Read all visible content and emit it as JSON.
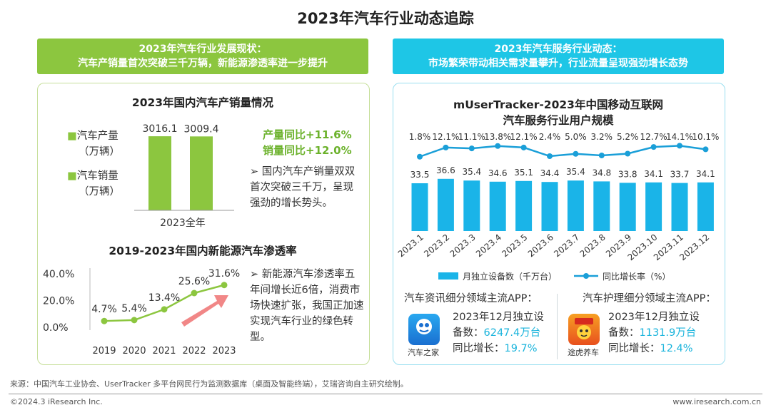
{
  "page_title": "2023年汽车行业动态追踪",
  "left_header": {
    "line1": "2023年汽车行业发展现状：",
    "line2": "汽车产销量首次突破三千万辆，新能源渗透率进一步提升"
  },
  "right_header": {
    "line1": "2023年汽车服务行业动态：",
    "line2": "市场繁荣带动相关需求量攀升，行业流量呈现强劲增长态势"
  },
  "production_section": {
    "title": "2023年国内汽车产销量情况",
    "legend": [
      {
        "label": "汽车产量",
        "unit": "（万辆）"
      },
      {
        "label": "汽车销量",
        "unit": "（万辆）"
      }
    ],
    "stats": [
      "产量同比+11.6%",
      "销量同比+12.0%"
    ],
    "note": "➢ 国内汽车产销量双双首次突破三千万，呈现强劲的增长势头。"
  },
  "nev_section": {
    "title": "2019-2023年国内新能源汽车渗透率",
    "note": "➢ 新能源汽车渗透率五年间增长近6倍，消费市场快速扩张，我国正加速实现汽车行业的绿色转型。"
  },
  "muser_section": {
    "title_line1": "mUserTracker-2023年中国移动互联网",
    "title_line2": "汽车服务行业用户规模"
  },
  "apps": {
    "left_title": "汽车资讯细分领域主流APP：",
    "right_title": "汽车护理细分领域主流APP：",
    "left": {
      "name": "汽车之家",
      "line1": "2023年12月独立设",
      "line2_prefix": "备数：",
      "devices": "6247.4万台",
      "growth_prefix": "同比增长：",
      "growth": "19.7%"
    },
    "right": {
      "name": "途虎养车",
      "line1": "2023年12月独立设",
      "line2_prefix": "备数：",
      "devices": "1131.9万台",
      "growth_prefix": "同比增长：",
      "growth": "12.4%"
    }
  },
  "footer": {
    "source": "来源：中国汽车工业协会、UserTracker 多平台网民行为监测数据库（桌面及智能终端），艾瑞咨询自主研究绘制。",
    "copyright": "©2024.3 iResearch Inc.",
    "website": "www.iresearch.com.cn"
  },
  "colors": {
    "green": "#8cc63f",
    "green_text": "#6cb22c",
    "cyan": "#1ec6e6",
    "bar_blue": "#1ab4e8",
    "line_blue": "#1a9fd8",
    "arrow_red": "#f07a7a"
  },
  "chart_data": [
    {
      "type": "bar",
      "title": "2023年国内汽车产销量情况",
      "categories": [
        "2023全年"
      ],
      "series": [
        {
          "name": "汽车产量",
          "values": [
            3016.1
          ],
          "color": "#8cc63f"
        },
        {
          "name": "汽车销量",
          "values": [
            3009.4
          ],
          "color": "#8cc63f"
        }
      ],
      "ylim": [
        0,
        3200
      ]
    },
    {
      "type": "line",
      "title": "2019-2023年国内新能源汽车渗透率",
      "x": [
        "2019",
        "2020",
        "2021",
        "2022",
        "2023"
      ],
      "series": [
        {
          "values": [
            4.7,
            5.4,
            13.4,
            25.6,
            31.6
          ]
        }
      ],
      "y_tick_labels": [
        "0.0%",
        "20.0%",
        "40.0%"
      ],
      "ylim": [
        0,
        40
      ],
      "point_labels": [
        "4.7%",
        "5.4%",
        "13.4%",
        "25.6%",
        "31.6%"
      ],
      "color": "#8cc63f"
    },
    {
      "type": "bar",
      "title": "mUserTracker-2023年中国移动互联网汽车服务行业用户规模",
      "categories": [
        "2023.1",
        "2023.2",
        "2023.3",
        "2023.4",
        "2023.5",
        "2023.6",
        "2023.7",
        "2023.8",
        "2023.9",
        "2023.10",
        "2023.11",
        "2023.12"
      ],
      "series": [
        {
          "name": "月独立设备数（千万台）",
          "type": "bar",
          "values": [
            33.5,
            36.6,
            35.4,
            34.6,
            35.1,
            34.4,
            35.4,
            34.8,
            33.8,
            34.1,
            33.7,
            34.1
          ],
          "color": "#1ab4e8"
        },
        {
          "name": "同比增长率（%）",
          "type": "line",
          "values": [
            1.8,
            12.1,
            11.1,
            13.8,
            12.1,
            2.4,
            5.0,
            3.2,
            5.2,
            12.7,
            14.1,
            10.1
          ],
          "color": "#1a9fd8"
        }
      ],
      "bar_labels": [
        "33.5",
        "36.6",
        "35.4",
        "34.6",
        "35.1",
        "34.4",
        "35.4",
        "34.8",
        "33.8",
        "34.1",
        "33.7",
        "34.1"
      ],
      "line_labels": [
        "1.8%",
        "12.1%",
        "11.1%",
        "13.8%",
        "12.1%",
        "2.4%",
        "5.0%",
        "3.2%",
        "5.2%",
        "12.7%",
        "14.1%",
        "10.1%"
      ]
    }
  ]
}
